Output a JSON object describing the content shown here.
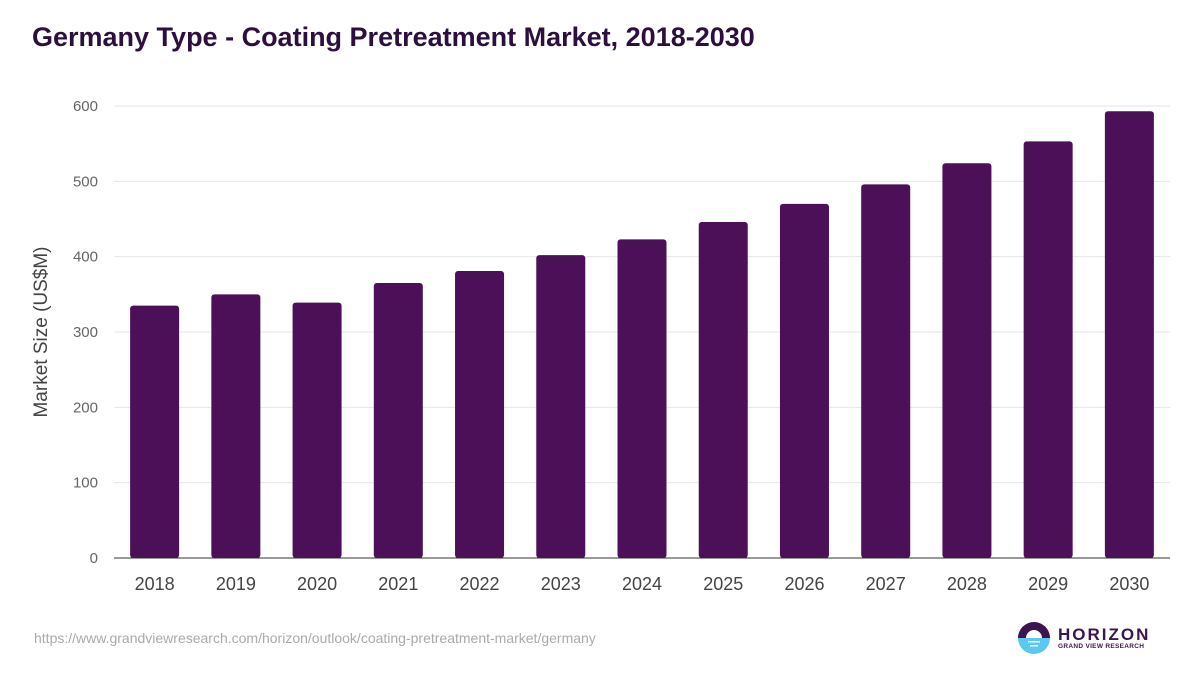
{
  "title": "Germany Type - Coating Pretreatment Market, 2018-2030",
  "url": "https://www.grandviewresearch.com/horizon/outlook/coating-pretreatment-market/germany",
  "logo": {
    "name": "HORIZON",
    "tagline": "GRAND VIEW RESEARCH"
  },
  "colors": {
    "bar": "#4b1058",
    "title": "#2d0f3f"
  },
  "chart_data": {
    "type": "bar",
    "title": "Germany Type - Coating Pretreatment Market, 2018-2030",
    "xlabel": "",
    "ylabel": "Market Size (US$M)",
    "ylim": [
      0,
      600
    ],
    "yticks": [
      0,
      100,
      200,
      300,
      400,
      500,
      600
    ],
    "grid": true,
    "categories": [
      "2018",
      "2019",
      "2020",
      "2021",
      "2022",
      "2023",
      "2024",
      "2025",
      "2026",
      "2027",
      "2028",
      "2029",
      "2030"
    ],
    "values": [
      335,
      350,
      339,
      365,
      381,
      402,
      423,
      446,
      470,
      496,
      524,
      553,
      593
    ]
  }
}
